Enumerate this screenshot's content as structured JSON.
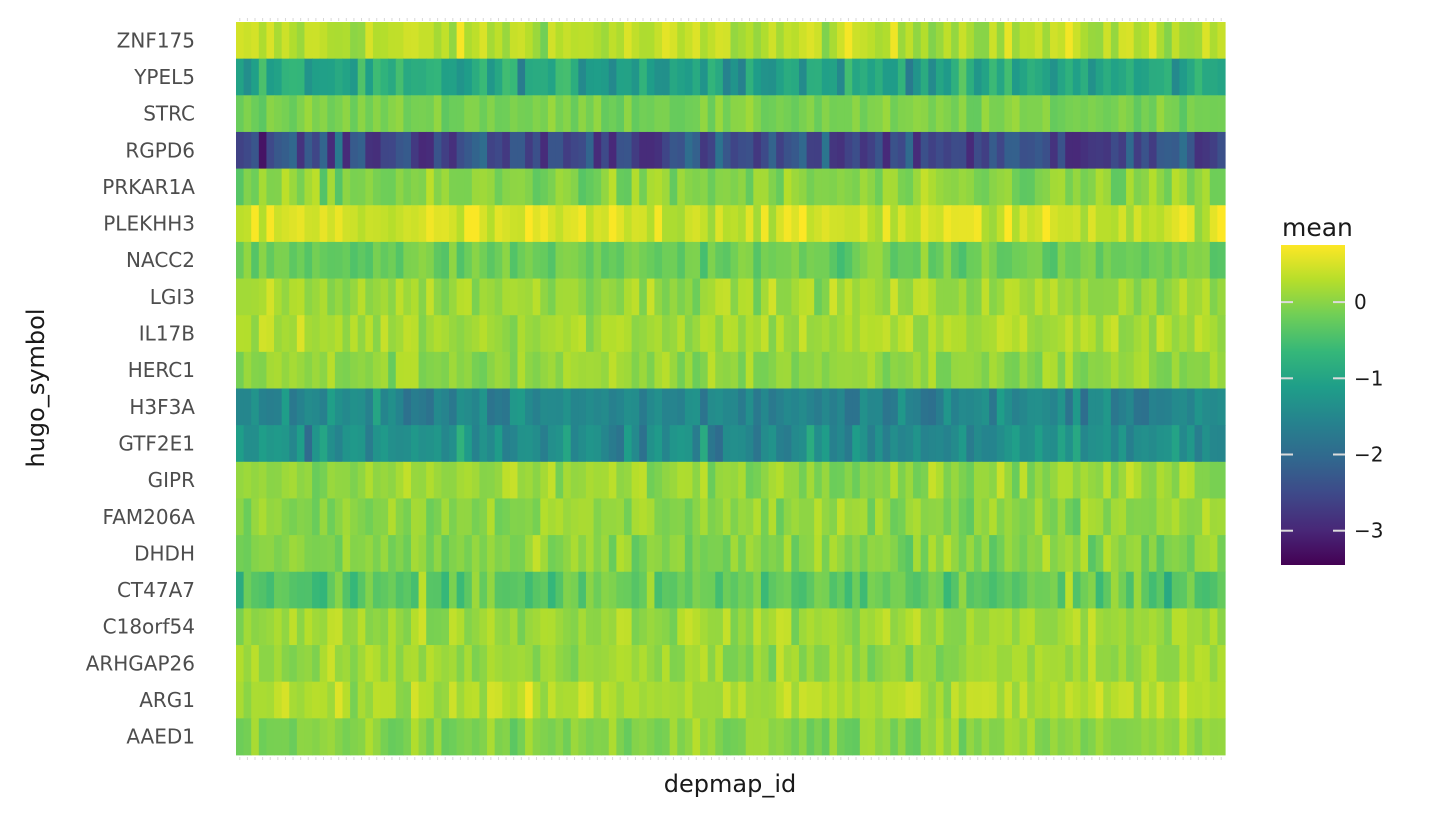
{
  "chart_data": {
    "type": "heatmap",
    "xlabel": "depmap_id",
    "ylabel": "hugo_symbol",
    "rows": [
      "ZNF175",
      "YPEL5",
      "STRC",
      "RGPD6",
      "PRKAR1A",
      "PLEKHH3",
      "NACC2",
      "LGI3",
      "IL17B",
      "HERC1",
      "H3F3A",
      "GTF2E1",
      "GIPR",
      "FAM206A",
      "DHDH",
      "CT47A7",
      "C18orf54",
      "ARHGAP26",
      "ARG1",
      "AAED1"
    ],
    "row_means": [
      0.3,
      -1.0,
      -0.1,
      -2.5,
      -0.05,
      0.45,
      -0.2,
      0.15,
      0.2,
      0.05,
      -1.5,
      -1.4,
      0.1,
      0.05,
      -0.05,
      -0.3,
      0.15,
      0.1,
      0.25,
      0.0
    ],
    "row_spread": [
      0.35,
      0.55,
      0.2,
      0.6,
      0.35,
      0.35,
      0.3,
      0.3,
      0.3,
      0.3,
      0.4,
      0.45,
      0.3,
      0.3,
      0.35,
      0.45,
      0.3,
      0.3,
      0.3,
      0.3
    ],
    "n_columns": 130,
    "x_tick_labels_shown": false,
    "legend": {
      "title": "mean",
      "position": "right",
      "ticks": [
        0,
        -1,
        -2,
        -3
      ],
      "range": [
        -3.45,
        0.75
      ],
      "colormap": "viridis"
    },
    "grid": false
  }
}
